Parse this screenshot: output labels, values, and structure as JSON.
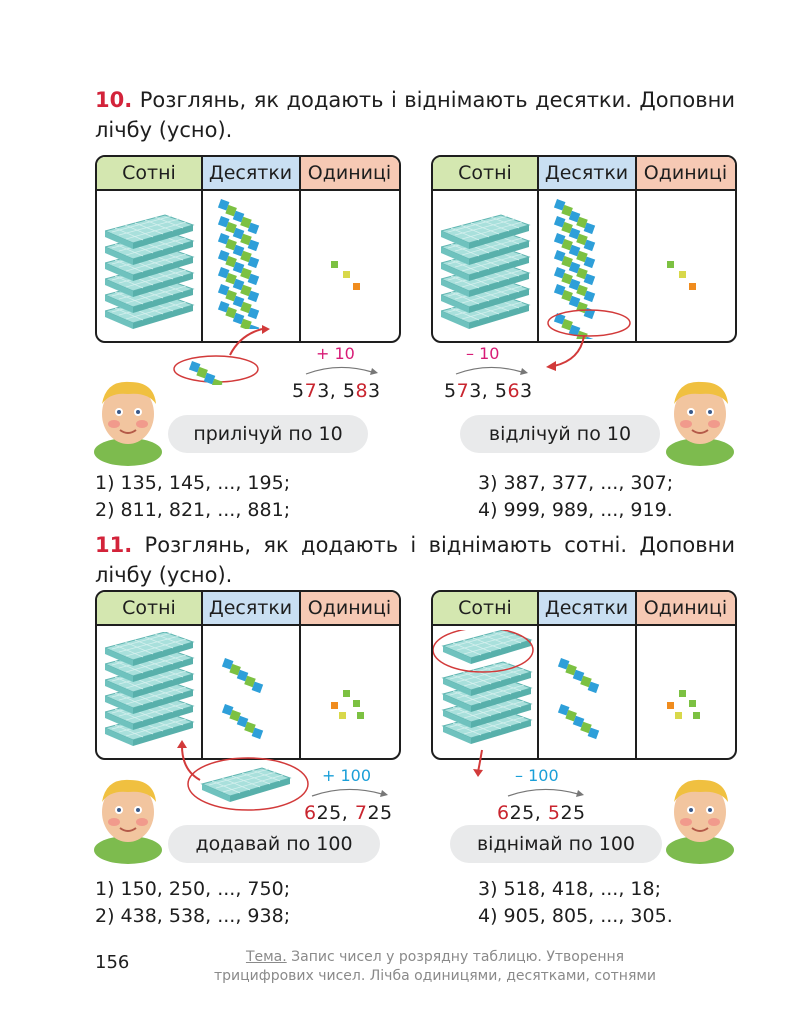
{
  "task10": {
    "number": "10.",
    "text": "Розглянь, як додають і віднімають десятки. Доповни лічбу (усно)."
  },
  "task11": {
    "number": "11.",
    "text": "Розглянь, як додають і віднімають сотні. Доповни лічбу (усно)."
  },
  "table_headers": {
    "hundreds": "Сотні",
    "tens": "Десятки",
    "ones": "Одиниці"
  },
  "t10_left": {
    "op": "+ 10",
    "a_pre": "5",
    "a_mid": "7",
    "a_post": "3, ",
    "b_pre": "5",
    "b_mid": "8",
    "b_post": "3",
    "bubble": "прилічуй по 10"
  },
  "t10_right": {
    "op": "– 10",
    "a_pre": "5",
    "a_mid": "7",
    "a_post": "3, ",
    "b_pre": "5",
    "b_mid": "6",
    "b_post": "3",
    "bubble": "відлічуй по 10"
  },
  "t10_sequences": [
    "1) 135, 145, ..., 195;",
    "2) 811, 821, ..., 881;",
    "3) 387, 377, ..., 307;",
    "4) 999, 989, ..., 919."
  ],
  "t11_left": {
    "op": "+ 100",
    "a_mid": "6",
    "a_post": "25, ",
    "b_mid": "7",
    "b_post": "25",
    "bubble": "додавай по 100"
  },
  "t11_right": {
    "op": "– 100",
    "a_mid": "6",
    "a_post": "25, ",
    "b_mid": "5",
    "b_post": "25",
    "bubble": "віднімай по 100"
  },
  "t11_sequences": [
    "1) 150, 250, ..., 750;",
    "2) 438, 538, ..., 938;",
    "3) 518, 418, ..., 18;",
    "4) 905, 805, ..., 305."
  ],
  "footer": {
    "page_number": "156",
    "topic_label": "Тема.",
    "topic_line1": " Запис чисел у розрядну таблицю. Утворення",
    "topic_line2": "трицифрових чисел. Лічба одиницями, десятками, сотнями"
  },
  "colors": {
    "accent_red": "#d3233a",
    "pink": "#d81b76",
    "blue": "#1a9fd8",
    "hundreds_header": "#d4e7b0",
    "tens_header": "#c9dff2",
    "ones_header": "#f6c9b4",
    "flat_block": "#8fd3cf"
  },
  "icons": [
    "hundred-flat-icon",
    "ten-rod-icon",
    "unit-cube-icon",
    "boy-illustration",
    "curved-arrow-icon"
  ]
}
